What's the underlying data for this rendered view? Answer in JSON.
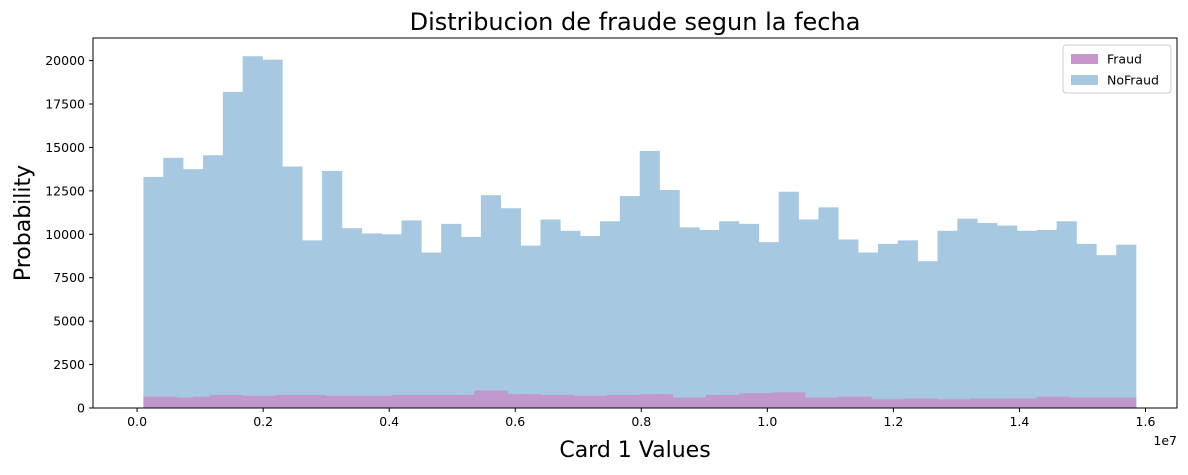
{
  "chart_data": {
    "type": "bar",
    "title": "Distribucion de fraude segun la fecha",
    "xlabel": "Card 1 Values",
    "ylabel": "Probability",
    "x_offset_label": "1e7",
    "xlim": [
      -0.07,
      1.65
    ],
    "ylim": [
      0,
      21300
    ],
    "x_ticks": [
      0.0,
      0.2,
      0.4,
      0.6,
      0.8,
      1.0,
      1.2,
      1.4,
      1.6
    ],
    "x_tick_labels": [
      "0.0",
      "0.2",
      "0.4",
      "0.6",
      "0.8",
      "1.0",
      "1.2",
      "1.4",
      "1.6"
    ],
    "y_ticks": [
      0,
      2500,
      5000,
      7500,
      10000,
      12500,
      15000,
      17500,
      20000
    ],
    "y_tick_labels": [
      "0",
      "2500",
      "5000",
      "7500",
      "10000",
      "12500",
      "15000",
      "17500",
      "20000"
    ],
    "grid": false,
    "legend_position": "top-right",
    "bin_start": 0.01,
    "bin_end": 1.585,
    "series": [
      {
        "name": "Fraud",
        "color": "#c58fc9",
        "values": [
          650,
          650,
          600,
          650,
          750,
          750,
          700,
          700,
          750,
          750,
          750,
          700,
          700,
          700,
          700,
          750,
          750,
          750,
          750,
          750,
          1000,
          1000,
          800,
          800,
          750,
          750,
          700,
          700,
          750,
          750,
          800,
          800,
          600,
          600,
          750,
          750,
          850,
          850,
          900,
          900,
          600,
          600,
          650,
          650,
          500,
          500,
          550,
          550,
          500,
          500,
          550,
          550,
          550,
          550,
          650,
          650,
          600,
          600,
          600,
          600
        ]
      },
      {
        "name": "NoFraud",
        "color": "#a6c8e0",
        "values": [
          13300,
          14400,
          13750,
          14550,
          18200,
          20250,
          20050,
          13900,
          9650,
          13650,
          10350,
          10050,
          10000,
          10800,
          8950,
          10600,
          9850,
          12250,
          11500,
          9350,
          10850,
          10200,
          9900,
          10750,
          12200,
          14800,
          12550,
          10400,
          10250,
          10750,
          10600,
          9550,
          12450,
          10850,
          11550,
          9700,
          8950,
          9450,
          9650,
          8450,
          10200,
          10900,
          10650,
          10500,
          10200,
          10250,
          10750,
          9450,
          8800,
          9400
        ]
      }
    ]
  }
}
